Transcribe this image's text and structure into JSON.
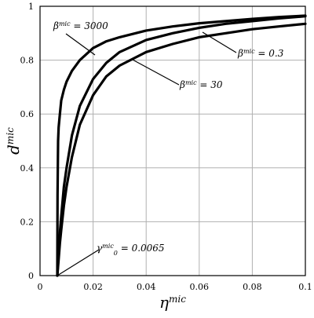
{
  "chart_data": {
    "type": "line",
    "title": "",
    "xlabel": "η",
    "xlabel_sup": "mic",
    "ylabel": "d",
    "ylabel_sup": "mic",
    "xlim": [
      0,
      0.1
    ],
    "ylim": [
      0,
      1
    ],
    "xticks": [
      0,
      0.02,
      0.04,
      0.06,
      0.08,
      0.1
    ],
    "yticks": [
      0,
      0.2,
      0.4,
      0.6,
      0.8,
      1
    ],
    "xtick_labels": [
      "0",
      "0.02",
      "0.04",
      "0.06",
      "0.08",
      "0.1"
    ],
    "ytick_labels": [
      "0",
      "0.2",
      "0.4",
      "0.6",
      "0.8",
      "1"
    ],
    "grid": true,
    "legend": "none",
    "line_color": "#000000",
    "grid_color": "#b0b0b0",
    "threshold": 0.0065,
    "series": [
      {
        "name": "β^mic = 3000",
        "x": [
          0.0065,
          0.0066,
          0.0068,
          0.007,
          0.0075,
          0.008,
          0.009,
          0.01,
          0.012,
          0.015,
          0.02,
          0.025,
          0.03,
          0.04,
          0.05,
          0.06,
          0.07,
          0.08,
          0.09,
          0.1
        ],
        "y": [
          0,
          0.3,
          0.5,
          0.55,
          0.6,
          0.65,
          0.69,
          0.72,
          0.76,
          0.8,
          0.845,
          0.87,
          0.885,
          0.91,
          0.925,
          0.937,
          0.945,
          0.953,
          0.96,
          0.965
        ]
      },
      {
        "name": "β^mic = 30",
        "x": [
          0.0065,
          0.007,
          0.0075,
          0.008,
          0.009,
          0.01,
          0.012,
          0.015,
          0.02,
          0.025,
          0.03,
          0.04,
          0.05,
          0.06,
          0.07,
          0.08,
          0.09,
          0.1
        ],
        "y": [
          0,
          0.08,
          0.16,
          0.22,
          0.33,
          0.4,
          0.52,
          0.63,
          0.73,
          0.79,
          0.83,
          0.875,
          0.9,
          0.92,
          0.935,
          0.945,
          0.955,
          0.963
        ]
      },
      {
        "name": "β^mic = 0.3",
        "x": [
          0.0065,
          0.007,
          0.0075,
          0.008,
          0.009,
          0.01,
          0.012,
          0.015,
          0.02,
          0.025,
          0.03,
          0.04,
          0.05,
          0.06,
          0.07,
          0.08,
          0.09,
          0.1
        ],
        "y": [
          0,
          0.06,
          0.12,
          0.17,
          0.26,
          0.33,
          0.44,
          0.56,
          0.67,
          0.74,
          0.78,
          0.83,
          0.86,
          0.885,
          0.9,
          0.915,
          0.925,
          0.935
        ]
      }
    ],
    "annotations": [
      {
        "greek": "β",
        "sup": "mic",
        "text": " = 3000",
        "series_index": 0
      },
      {
        "greek": "β",
        "sup": "mic",
        "text": " = 30",
        "series_index": 1
      },
      {
        "greek": "β",
        "sup": "mic",
        "text": " = 0.3",
        "series_index": 2
      },
      {
        "greek": "γ",
        "sup": "mic",
        "sub": "0",
        "text": " = 0.0065"
      }
    ]
  }
}
